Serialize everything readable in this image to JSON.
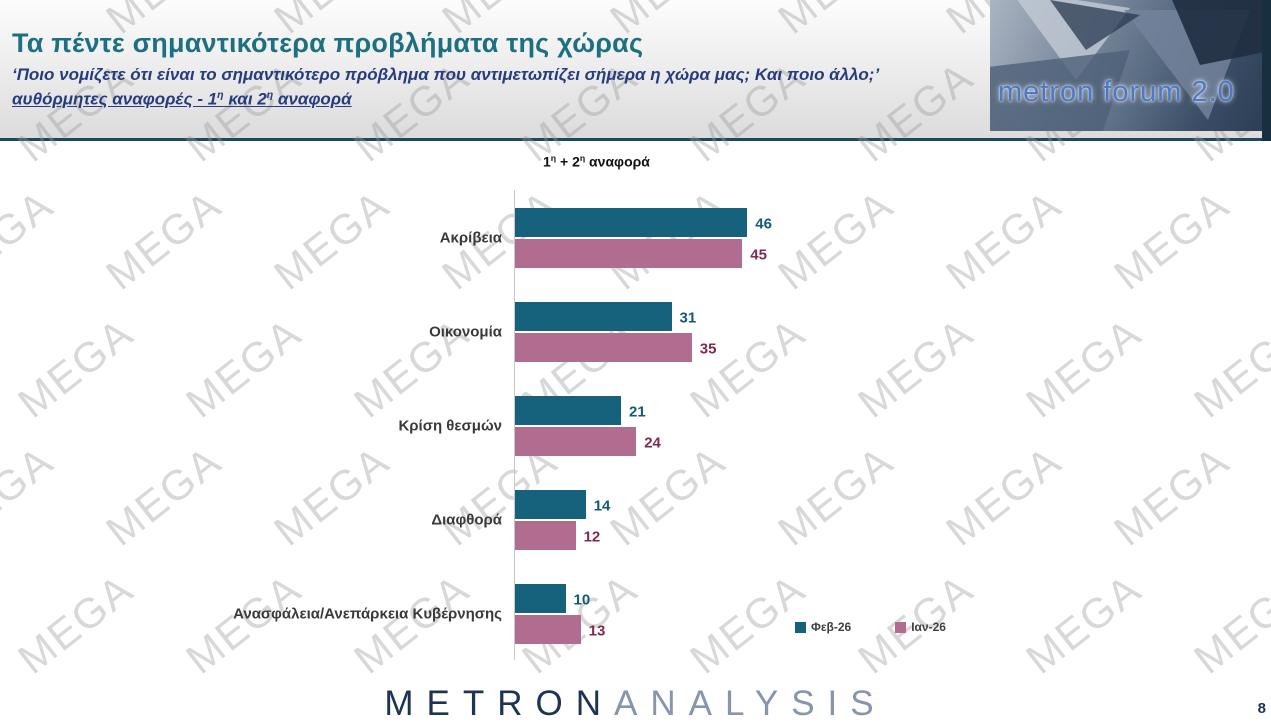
{
  "slide": {
    "watermark_text": "MEGA",
    "page_number": "8"
  },
  "header": {
    "title": "Τα πέντε σημαντικότερα προβλήματα της χώρας",
    "subtitle": "‘Ποιο νομίζετε ότι είναι το σημαντικότερο πρόβλημα που αντιμετωπίζει σήμερα η χώρα μας; Και ποιο άλλο;’",
    "reference_parts": [
      "αυθόρμητες αναφορές - 1",
      "η",
      " και 2",
      "η",
      " αναφορά"
    ],
    "logo_text": "metron forum 2.0"
  },
  "footer": {
    "brand_metron": "METRON",
    "brand_analysis": "ANALYSIS"
  },
  "chart_data": {
    "type": "bar",
    "orientation": "horizontal",
    "title_parts": [
      "1",
      "η",
      " + 2",
      "η",
      " αναφορά"
    ],
    "categories": [
      "Ακρίβεια",
      "Οικονομία",
      "Κρίση θεσμών",
      "Διαφθορά",
      "Ανασφάλεια/Ανεπάρκεια Κυβέρνησης"
    ],
    "series": [
      {
        "name": "Φεβ-26",
        "color": "#16617c",
        "label_color": "#135a74",
        "values": [
          46,
          31,
          21,
          14,
          10
        ]
      },
      {
        "name": "Ιαν-26",
        "color": "#b06d90",
        "label_color": "#7e2a52",
        "values": [
          45,
          35,
          24,
          12,
          13
        ]
      }
    ],
    "xlim": [
      0,
      50
    ],
    "grid": false,
    "legend_position": "bottom-right"
  }
}
